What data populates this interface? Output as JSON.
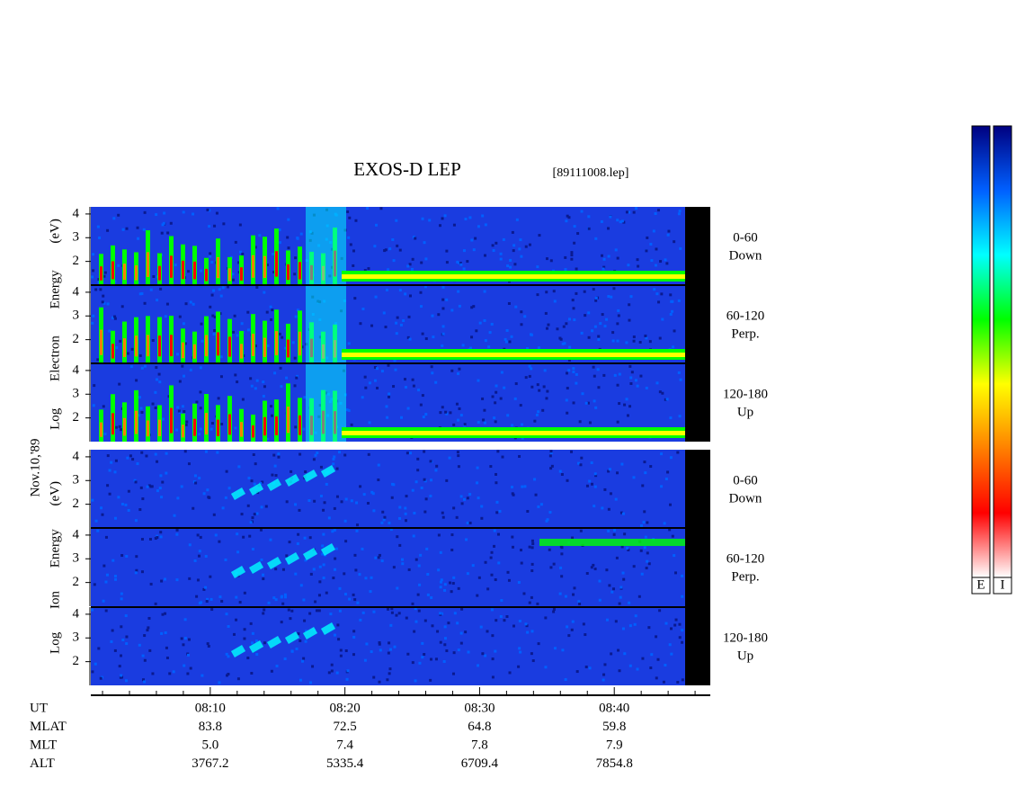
{
  "chart_data": {
    "type": "spectrogram",
    "title": "EXOS-D LEP",
    "file_label": "[89111008.lep]",
    "date_label": "Nov.10,'89",
    "xlim": [
      1.13,
      47.13
    ],
    "xticks": [
      {
        "value": 10,
        "label": "08:10"
      },
      {
        "value": 20,
        "label": "08:20"
      },
      {
        "value": 30,
        "label": "08:30"
      },
      {
        "value": 40,
        "label": "08:40"
      }
    ],
    "minor_xticks": [
      2,
      4,
      6,
      8,
      12,
      14,
      16,
      18,
      22,
      24,
      26,
      28,
      32,
      34,
      36,
      38,
      42,
      44,
      46
    ],
    "panels": [
      {
        "ylabel": "Log Electron Energy (eV)",
        "species": "E",
        "subpanels": [
          {
            "label": [
              "0-60",
              "Down"
            ],
            "ylim": [
              1,
              4.3
            ],
            "yticks": [
              2,
              3,
              4
            ]
          },
          {
            "label": [
              "60-120",
              "Perp."
            ],
            "ylim": [
              1,
              4.3
            ],
            "yticks": [
              2,
              3,
              4
            ]
          },
          {
            "label": [
              "120-180",
              "Up"
            ],
            "ylim": [
              1,
              4.3
            ],
            "yticks": [
              2,
              3,
              4
            ]
          }
        ]
      },
      {
        "ylabel": "Log Ion Energy (eV)",
        "species": "I",
        "subpanels": [
          {
            "label": [
              "0-60",
              "Down"
            ],
            "ylim": [
              1,
              4.3
            ],
            "yticks": [
              2,
              3,
              4
            ]
          },
          {
            "label": [
              "60-120",
              "Perp."
            ],
            "ylim": [
              1,
              4.3
            ],
            "yticks": [
              2,
              3,
              4
            ]
          },
          {
            "label": [
              "120-180",
              "Up"
            ],
            "ylim": [
              1,
              4.3
            ],
            "yticks": [
              2,
              3,
              4
            ]
          }
        ]
      }
    ],
    "orbit_rows": [
      {
        "label": "UT",
        "values": []
      },
      {
        "label": "MLAT",
        "values": [
          "83.8",
          "72.5",
          "64.8",
          "59.8"
        ]
      },
      {
        "label": "MLT",
        "values": [
          "5.0",
          "7.4",
          "7.8",
          "7.9"
        ]
      },
      {
        "label": "ALT",
        "values": [
          "3767.2",
          "5335.4",
          "6709.4",
          "7854.8"
        ]
      }
    ],
    "colorbar_labels": [
      "E",
      "I"
    ],
    "colorscale": [
      "#ffffff",
      "#ff0000",
      "#ff8000",
      "#ffff00",
      "#00ff00",
      "#00ffff",
      "#0060ff",
      "#000080"
    ]
  }
}
